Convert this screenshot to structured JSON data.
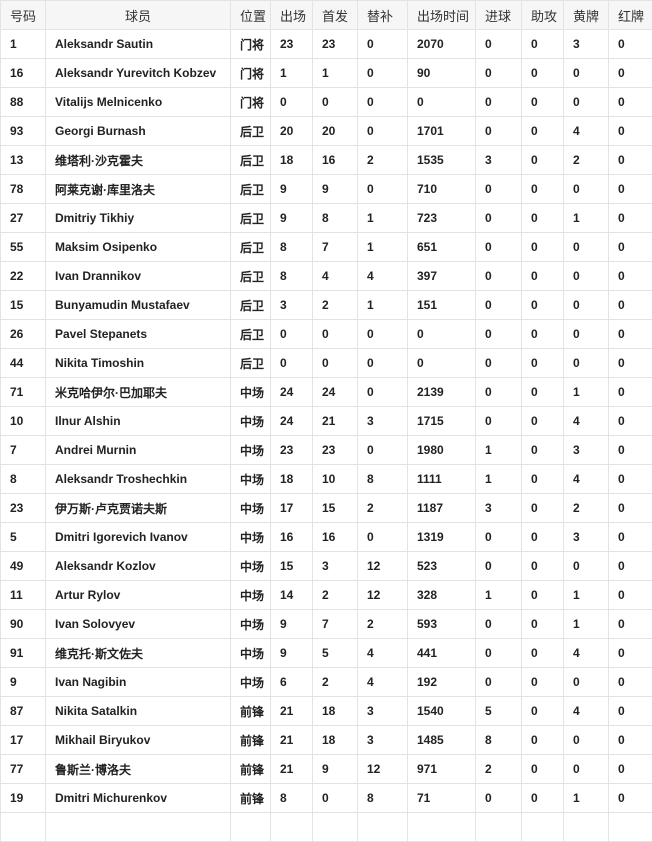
{
  "headers": [
    "号码",
    "球员",
    "位置",
    "出场",
    "首发",
    "替补",
    "出场时间",
    "进球",
    "助攻",
    "黄牌",
    "红牌"
  ],
  "rows": [
    [
      "1",
      "Aleksandr Sautin",
      "门将",
      "23",
      "23",
      "0",
      "2070",
      "0",
      "0",
      "3",
      "0"
    ],
    [
      "16",
      "Aleksandr Yurevitch Kobzev",
      "门将",
      "1",
      "1",
      "0",
      "90",
      "0",
      "0",
      "0",
      "0"
    ],
    [
      "88",
      "Vitalijs Melnicenko",
      "门将",
      "0",
      "0",
      "0",
      "0",
      "0",
      "0",
      "0",
      "0"
    ],
    [
      "93",
      "Georgi Burnash",
      "后卫",
      "20",
      "20",
      "0",
      "1701",
      "0",
      "0",
      "4",
      "0"
    ],
    [
      "13",
      "维塔利·沙克霍夫",
      "后卫",
      "18",
      "16",
      "2",
      "1535",
      "3",
      "0",
      "2",
      "0"
    ],
    [
      "78",
      "阿莱克谢·库里洛夫",
      "后卫",
      "9",
      "9",
      "0",
      "710",
      "0",
      "0",
      "0",
      "0"
    ],
    [
      "27",
      "Dmitriy Tikhiy",
      "后卫",
      "9",
      "8",
      "1",
      "723",
      "0",
      "0",
      "1",
      "0"
    ],
    [
      "55",
      "Maksim Osipenko",
      "后卫",
      "8",
      "7",
      "1",
      "651",
      "0",
      "0",
      "0",
      "0"
    ],
    [
      "22",
      "Ivan Drannikov",
      "后卫",
      "8",
      "4",
      "4",
      "397",
      "0",
      "0",
      "0",
      "0"
    ],
    [
      "15",
      "Bunyamudin Mustafaev",
      "后卫",
      "3",
      "2",
      "1",
      "151",
      "0",
      "0",
      "0",
      "0"
    ],
    [
      "26",
      "Pavel Stepanets",
      "后卫",
      "0",
      "0",
      "0",
      "0",
      "0",
      "0",
      "0",
      "0"
    ],
    [
      "44",
      "Nikita Timoshin",
      "后卫",
      "0",
      "0",
      "0",
      "0",
      "0",
      "0",
      "0",
      "0"
    ],
    [
      "71",
      "米克哈伊尔·巴加耶夫",
      "中场",
      "24",
      "24",
      "0",
      "2139",
      "0",
      "0",
      "1",
      "0"
    ],
    [
      "10",
      "Ilnur Alshin",
      "中场",
      "24",
      "21",
      "3",
      "1715",
      "0",
      "0",
      "4",
      "0"
    ],
    [
      "7",
      "Andrei Murnin",
      "中场",
      "23",
      "23",
      "0",
      "1980",
      "1",
      "0",
      "3",
      "0"
    ],
    [
      "8",
      "Aleksandr Troshechkin",
      "中场",
      "18",
      "10",
      "8",
      "1111",
      "1",
      "0",
      "4",
      "0"
    ],
    [
      "23",
      "伊万斯·卢克贾诺夫斯",
      "中场",
      "17",
      "15",
      "2",
      "1187",
      "3",
      "0",
      "2",
      "0"
    ],
    [
      "5",
      "Dmitri Igorevich Ivanov",
      "中场",
      "16",
      "16",
      "0",
      "1319",
      "0",
      "0",
      "3",
      "0"
    ],
    [
      "49",
      "Aleksandr Kozlov",
      "中场",
      "15",
      "3",
      "12",
      "523",
      "0",
      "0",
      "0",
      "0"
    ],
    [
      "11",
      "Artur Rylov",
      "中场",
      "14",
      "2",
      "12",
      "328",
      "1",
      "0",
      "1",
      "0"
    ],
    [
      "90",
      "Ivan Solovyev",
      "中场",
      "9",
      "7",
      "2",
      "593",
      "0",
      "0",
      "1",
      "0"
    ],
    [
      "91",
      "维克托·斯文佐夫",
      "中场",
      "9",
      "5",
      "4",
      "441",
      "0",
      "0",
      "4",
      "0"
    ],
    [
      "9",
      "Ivan Nagibin",
      "中场",
      "6",
      "2",
      "4",
      "192",
      "0",
      "0",
      "0",
      "0"
    ],
    [
      "87",
      "Nikita Satalkin",
      "前锋",
      "21",
      "18",
      "3",
      "1540",
      "5",
      "0",
      "4",
      "0"
    ],
    [
      "17",
      "Mikhail Biryukov",
      "前锋",
      "21",
      "18",
      "3",
      "1485",
      "8",
      "0",
      "0",
      "0"
    ],
    [
      "77",
      "鲁斯兰·博洛夫",
      "前锋",
      "21",
      "9",
      "12",
      "971",
      "2",
      "0",
      "0",
      "0"
    ],
    [
      "19",
      "Dmitri Michurenkov",
      "前锋",
      "8",
      "0",
      "8",
      "71",
      "0",
      "0",
      "1",
      "0"
    ]
  ]
}
